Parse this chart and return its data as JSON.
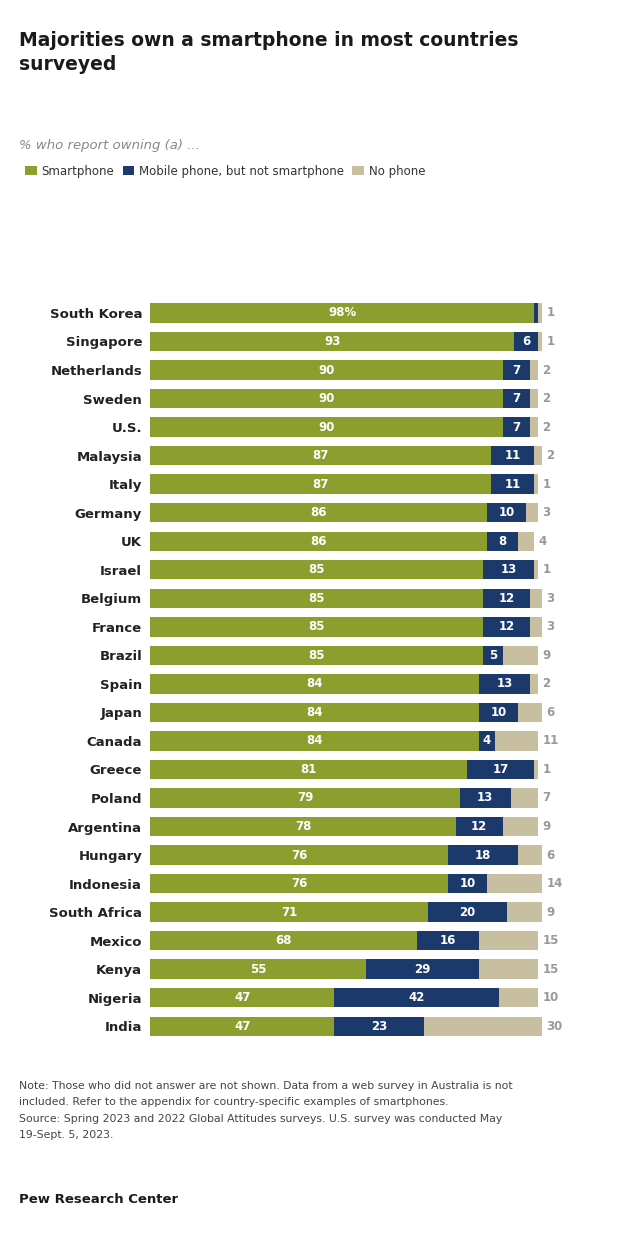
{
  "title": "Majorities own a smartphone in most countries\nsurveyed",
  "subtitle": "% who report owning (a) ...",
  "legend_labels": [
    "Smartphone",
    "Mobile phone, but not smartphone",
    "No phone"
  ],
  "colors": {
    "smartphone": "#8B9E2E",
    "mobile": "#1B3A6B",
    "no_phone": "#C8BFA0"
  },
  "countries": [
    "South Korea",
    "Singapore",
    "Netherlands",
    "Sweden",
    "U.S.",
    "Malaysia",
    "Italy",
    "Germany",
    "UK",
    "Israel",
    "Belgium",
    "France",
    "Brazil",
    "Spain",
    "Japan",
    "Canada",
    "Greece",
    "Poland",
    "Argentina",
    "Hungary",
    "Indonesia",
    "South Africa",
    "Mexico",
    "Kenya",
    "Nigeria",
    "India"
  ],
  "smartphone": [
    98,
    93,
    90,
    90,
    90,
    87,
    87,
    86,
    86,
    85,
    85,
    85,
    85,
    84,
    84,
    84,
    81,
    79,
    78,
    76,
    76,
    71,
    68,
    55,
    47,
    47
  ],
  "mobile": [
    1,
    6,
    7,
    7,
    7,
    11,
    11,
    10,
    8,
    13,
    12,
    12,
    5,
    13,
    10,
    4,
    17,
    13,
    12,
    18,
    10,
    20,
    16,
    29,
    42,
    23
  ],
  "no_phone": [
    1,
    1,
    2,
    2,
    2,
    2,
    1,
    3,
    4,
    1,
    3,
    3,
    9,
    2,
    6,
    11,
    1,
    7,
    9,
    6,
    14,
    9,
    15,
    15,
    10,
    30
  ],
  "note1": "Note: Those who did not answer are not shown. Data from a web survey in Australia is not",
  "note2": "included. Refer to the appendix for country-specific examples of smartphones.",
  "note3": "Source: Spring 2023 and 2022 Global Attitudes surveys. U.S. survey was conducted May",
  "note4": "19-Sept. 5, 2023.",
  "source": "Pew Research Center"
}
